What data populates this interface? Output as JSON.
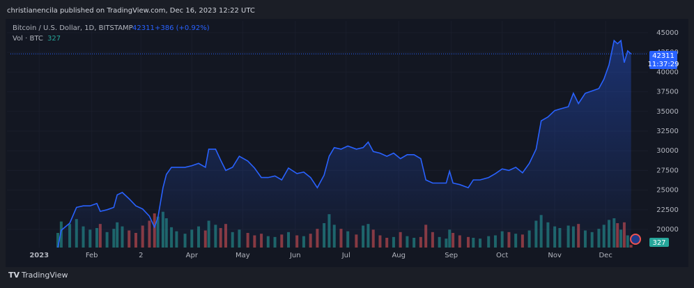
{
  "header": {
    "publisher": "christianencila published on TradingView.com, Dec 16, 2023 12:22 UTC"
  },
  "footer": {
    "brand": "TradingView"
  },
  "chart_data": {
    "type": "line",
    "legend": {
      "symbol": "Bitcoin / U.S. Dollar, 1D, BITSTAMP",
      "change": "+386 (+0.92%)",
      "volume_title": "Vol · BTC"
    },
    "countdown": "11:37:29",
    "x": [
      11,
      13,
      18,
      22,
      26,
      30,
      34,
      36,
      40,
      44,
      46,
      49,
      53,
      57,
      61,
      65,
      68,
      70,
      73,
      75,
      78,
      81,
      86,
      90,
      94,
      98,
      100,
      104,
      107,
      110,
      114,
      118,
      123,
      127,
      131,
      135,
      139,
      143,
      147,
      152,
      156,
      160,
      164,
      168,
      171,
      174,
      178,
      182,
      187,
      191,
      194,
      197,
      201,
      205,
      209,
      213,
      217,
      221,
      225,
      228,
      232,
      236,
      240,
      242,
      244,
      248,
      253,
      256,
      260,
      265,
      269,
      273,
      277,
      281,
      285,
      289,
      293,
      296,
      300,
      304,
      307,
      312,
      315,
      318,
      322,
      326,
      330,
      333,
      336,
      339,
      341,
      343,
      345,
      347,
      349
    ],
    "series": [
      {
        "name": "Bitcoin / U.S. Dollar",
        "color": "#2962ff",
        "values": [
          17700,
          19900,
          20800,
          22800,
          23000,
          23000,
          23300,
          22300,
          22500,
          22800,
          24400,
          24700,
          23900,
          23000,
          22600,
          21700,
          20300,
          21500,
          25300,
          27000,
          27900,
          27900,
          27900,
          28100,
          28400,
          27900,
          30200,
          30200,
          28800,
          27500,
          27900,
          29300,
          28700,
          27800,
          26600,
          26600,
          26800,
          26300,
          27800,
          27100,
          27300,
          26600,
          25300,
          26900,
          29300,
          30400,
          30200,
          30600,
          30200,
          30400,
          31100,
          29900,
          29700,
          29300,
          29700,
          29000,
          29500,
          29500,
          29000,
          26300,
          25900,
          25900,
          25900,
          27400,
          25900,
          25700,
          25300,
          26300,
          26300,
          26600,
          27100,
          27700,
          27500,
          27900,
          27200,
          28400,
          30200,
          33800,
          34300,
          35100,
          35300,
          35600,
          37300,
          36000,
          37300,
          37600,
          37900,
          39100,
          40900,
          44000,
          43600,
          44000,
          41200,
          42700,
          42311
        ]
      }
    ],
    "volume": {
      "up_color": "#26a69a",
      "down_color": "#ef5350",
      "vlim": [
        0,
        6000
      ],
      "values": [
        1800,
        3200,
        2900,
        3500,
        2600,
        2200,
        2400,
        2900,
        1900,
        2300,
        3100,
        2600,
        2100,
        1800,
        2700,
        3300,
        4200,
        3800,
        4400,
        3600,
        2500,
        2000,
        1700,
        2200,
        2600,
        2100,
        3300,
        2800,
        2400,
        2900,
        1900,
        2200,
        1800,
        1500,
        1700,
        1400,
        1300,
        1600,
        1900,
        1500,
        1400,
        1700,
        2300,
        3000,
        4100,
        2800,
        2300,
        2000,
        1600,
        2700,
        2900,
        2200,
        1500,
        1200,
        1300,
        1900,
        1400,
        1200,
        1300,
        2800,
        1900,
        1300,
        1100,
        2200,
        1800,
        1500,
        1300,
        1200,
        1100,
        1400,
        1500,
        2000,
        1900,
        1700,
        1600,
        2100,
        3300,
        4000,
        3100,
        2600,
        2400,
        2700,
        2600,
        2900,
        2100,
        1900,
        2300,
        2800,
        3400,
        3600,
        3000,
        2200,
        3100,
        1500,
        327
      ]
    },
    "xlim": [
      -19,
      359
    ],
    "xticks": [
      {
        "value": 0,
        "label": "2023"
      },
      {
        "value": 31,
        "label": "Feb"
      },
      {
        "value": 60,
        "label": "2"
      },
      {
        "value": 90,
        "label": "Apr"
      },
      {
        "value": 120,
        "label": "May"
      },
      {
        "value": 151,
        "label": "Jun"
      },
      {
        "value": 181,
        "label": "Jul"
      },
      {
        "value": 212,
        "label": "Aug"
      },
      {
        "value": 243,
        "label": "Sep"
      },
      {
        "value": 273,
        "label": "Oct"
      },
      {
        "value": 304,
        "label": "Nov"
      },
      {
        "value": 334,
        "label": "Dec"
      }
    ],
    "ylim": [
      17700,
      46500
    ],
    "yticks": [
      20000,
      22500,
      25000,
      27500,
      30000,
      32500,
      35000,
      37500,
      40000,
      42500,
      45000
    ],
    "grid": true
  }
}
